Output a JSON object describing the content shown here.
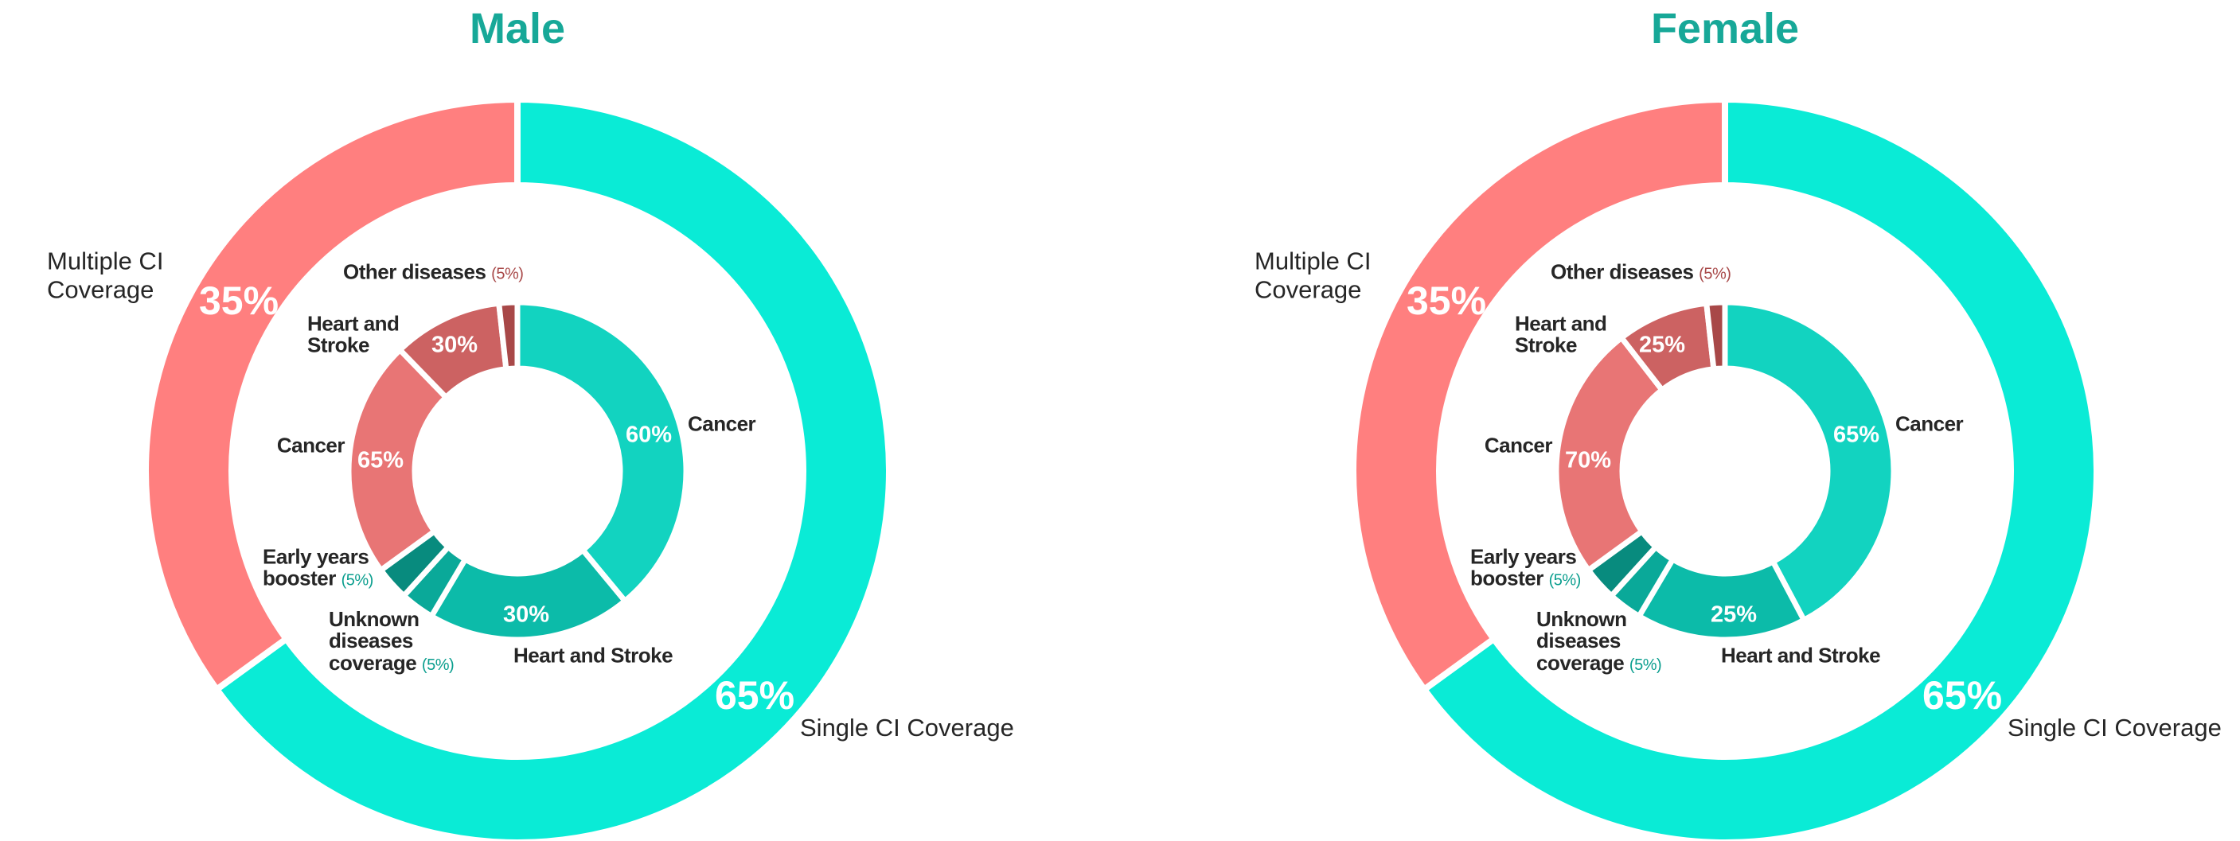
{
  "chart_data": [
    {
      "type": "sunburst",
      "title": "Male",
      "categories": [
        "Single CI Coverage",
        "Multiple CI Coverage"
      ],
      "values": [
        65,
        35
      ],
      "value_labels": [
        "65%",
        "35%"
      ],
      "colors": [
        "#0aebd6",
        "#ff7f7f"
      ],
      "children": [
        {
          "categories": [
            "Cancer",
            "Heart and Stroke",
            "Unknown diseases coverage",
            "Early years booster"
          ],
          "values": [
            60,
            30,
            5,
            5
          ],
          "value_labels": [
            "60%",
            "30%",
            "(5%)",
            "(5%)"
          ],
          "colors": [
            "#12d3c0",
            "#0cbba9",
            "#0aa999",
            "#088b7e"
          ]
        },
        {
          "categories": [
            "Cancer",
            "Heart and Stroke",
            "Other diseases"
          ],
          "values": [
            65,
            30,
            5
          ],
          "value_labels": [
            "65%",
            "30%",
            "(5%)"
          ],
          "colors": [
            "#e87575",
            "#cc6262",
            "#a84848"
          ]
        }
      ]
    },
    {
      "type": "sunburst",
      "title": "Female",
      "categories": [
        "Single CI Coverage",
        "Multiple CI Coverage"
      ],
      "values": [
        65,
        35
      ],
      "value_labels": [
        "65%",
        "35%"
      ],
      "colors": [
        "#0aebd6",
        "#ff7f7f"
      ],
      "children": [
        {
          "categories": [
            "Cancer",
            "Heart and Stroke",
            "Unknown diseases coverage",
            "Early years booster"
          ],
          "values": [
            65,
            25,
            5,
            5
          ],
          "value_labels": [
            "65%",
            "25%",
            "(5%)",
            "(5%)"
          ],
          "colors": [
            "#12d3c0",
            "#0cbba9",
            "#0aa999",
            "#088b7e"
          ]
        },
        {
          "categories": [
            "Cancer",
            "Heart and Stroke",
            "Other diseases"
          ],
          "values": [
            70,
            25,
            5
          ],
          "value_labels": [
            "70%",
            "25%",
            "(5%)"
          ],
          "colors": [
            "#e87575",
            "#cc6262",
            "#a84848"
          ]
        }
      ]
    }
  ]
}
